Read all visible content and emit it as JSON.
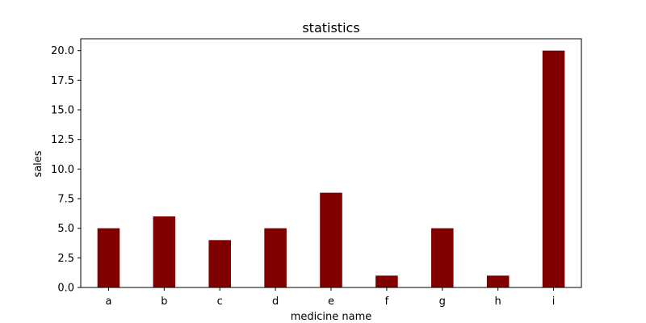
{
  "chart_data": {
    "type": "bar",
    "title": "statistics",
    "xlabel": "medicine name",
    "ylabel": "sales",
    "categories": [
      "a",
      "b",
      "c",
      "d",
      "e",
      "f",
      "g",
      "h",
      "i"
    ],
    "values": [
      5,
      6,
      4,
      5,
      8,
      1,
      5,
      1,
      20
    ],
    "ylim": [
      0,
      21
    ],
    "yticks": [
      "0.0",
      "2.5",
      "5.0",
      "7.5",
      "10.0",
      "12.5",
      "15.0",
      "17.5",
      "20.0"
    ],
    "bar_color": "#800000",
    "grid": false,
    "legend": false
  }
}
